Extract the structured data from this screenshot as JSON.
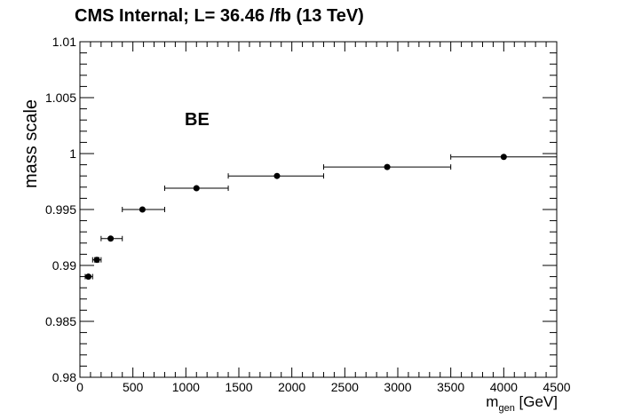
{
  "chart_data": {
    "type": "scatter",
    "title": "CMS Internal; L= 36.46 /fb (13 TeV)",
    "annotation": "BE",
    "ylabel": "mass scale",
    "xlabel": {
      "main": "m",
      "sub": "gen",
      "unit": " [GeV]"
    },
    "xlim": [
      0,
      4500
    ],
    "ylim": [
      0.98,
      1.01
    ],
    "x_ticks": [
      0,
      500,
      1000,
      1500,
      2000,
      2500,
      3000,
      3500,
      4000,
      4500
    ],
    "x_tick_labels": [
      "0",
      "500",
      "1000",
      "1500",
      "2000",
      "2500",
      "3000",
      "3500",
      "4000",
      "4500"
    ],
    "y_ticks": [
      0.98,
      0.985,
      0.99,
      0.995,
      1.0,
      1.005,
      1.01
    ],
    "y_tick_labels": [
      "0.98",
      "0.985",
      "0.99",
      "0.995",
      "1",
      "1.005",
      "1.01"
    ],
    "grid": false,
    "series": [
      {
        "points": [
          {
            "x": 80,
            "y": 0.989,
            "xlo": 50,
            "xhi": 120,
            "yerr": 0.0001
          },
          {
            "x": 160,
            "y": 0.9905,
            "xlo": 120,
            "xhi": 200,
            "yerr": 0.0002
          },
          {
            "x": 290,
            "y": 0.9924,
            "xlo": 200,
            "xhi": 400,
            "yerr": 0.0001
          },
          {
            "x": 590,
            "y": 0.995,
            "xlo": 400,
            "xhi": 800,
            "yerr": 0.0001
          },
          {
            "x": 1100,
            "y": 0.9969,
            "xlo": 800,
            "xhi": 1400,
            "yerr": 0.0001
          },
          {
            "x": 1860,
            "y": 0.998,
            "xlo": 1400,
            "xhi": 2300,
            "yerr": 0.0001
          },
          {
            "x": 2900,
            "y": 0.9988,
            "xlo": 2300,
            "xhi": 3500,
            "yerr": 0.0001
          },
          {
            "x": 4000,
            "y": 0.9997,
            "xlo": 3500,
            "xhi": 4500,
            "yerr": 0.0001
          }
        ]
      }
    ]
  }
}
